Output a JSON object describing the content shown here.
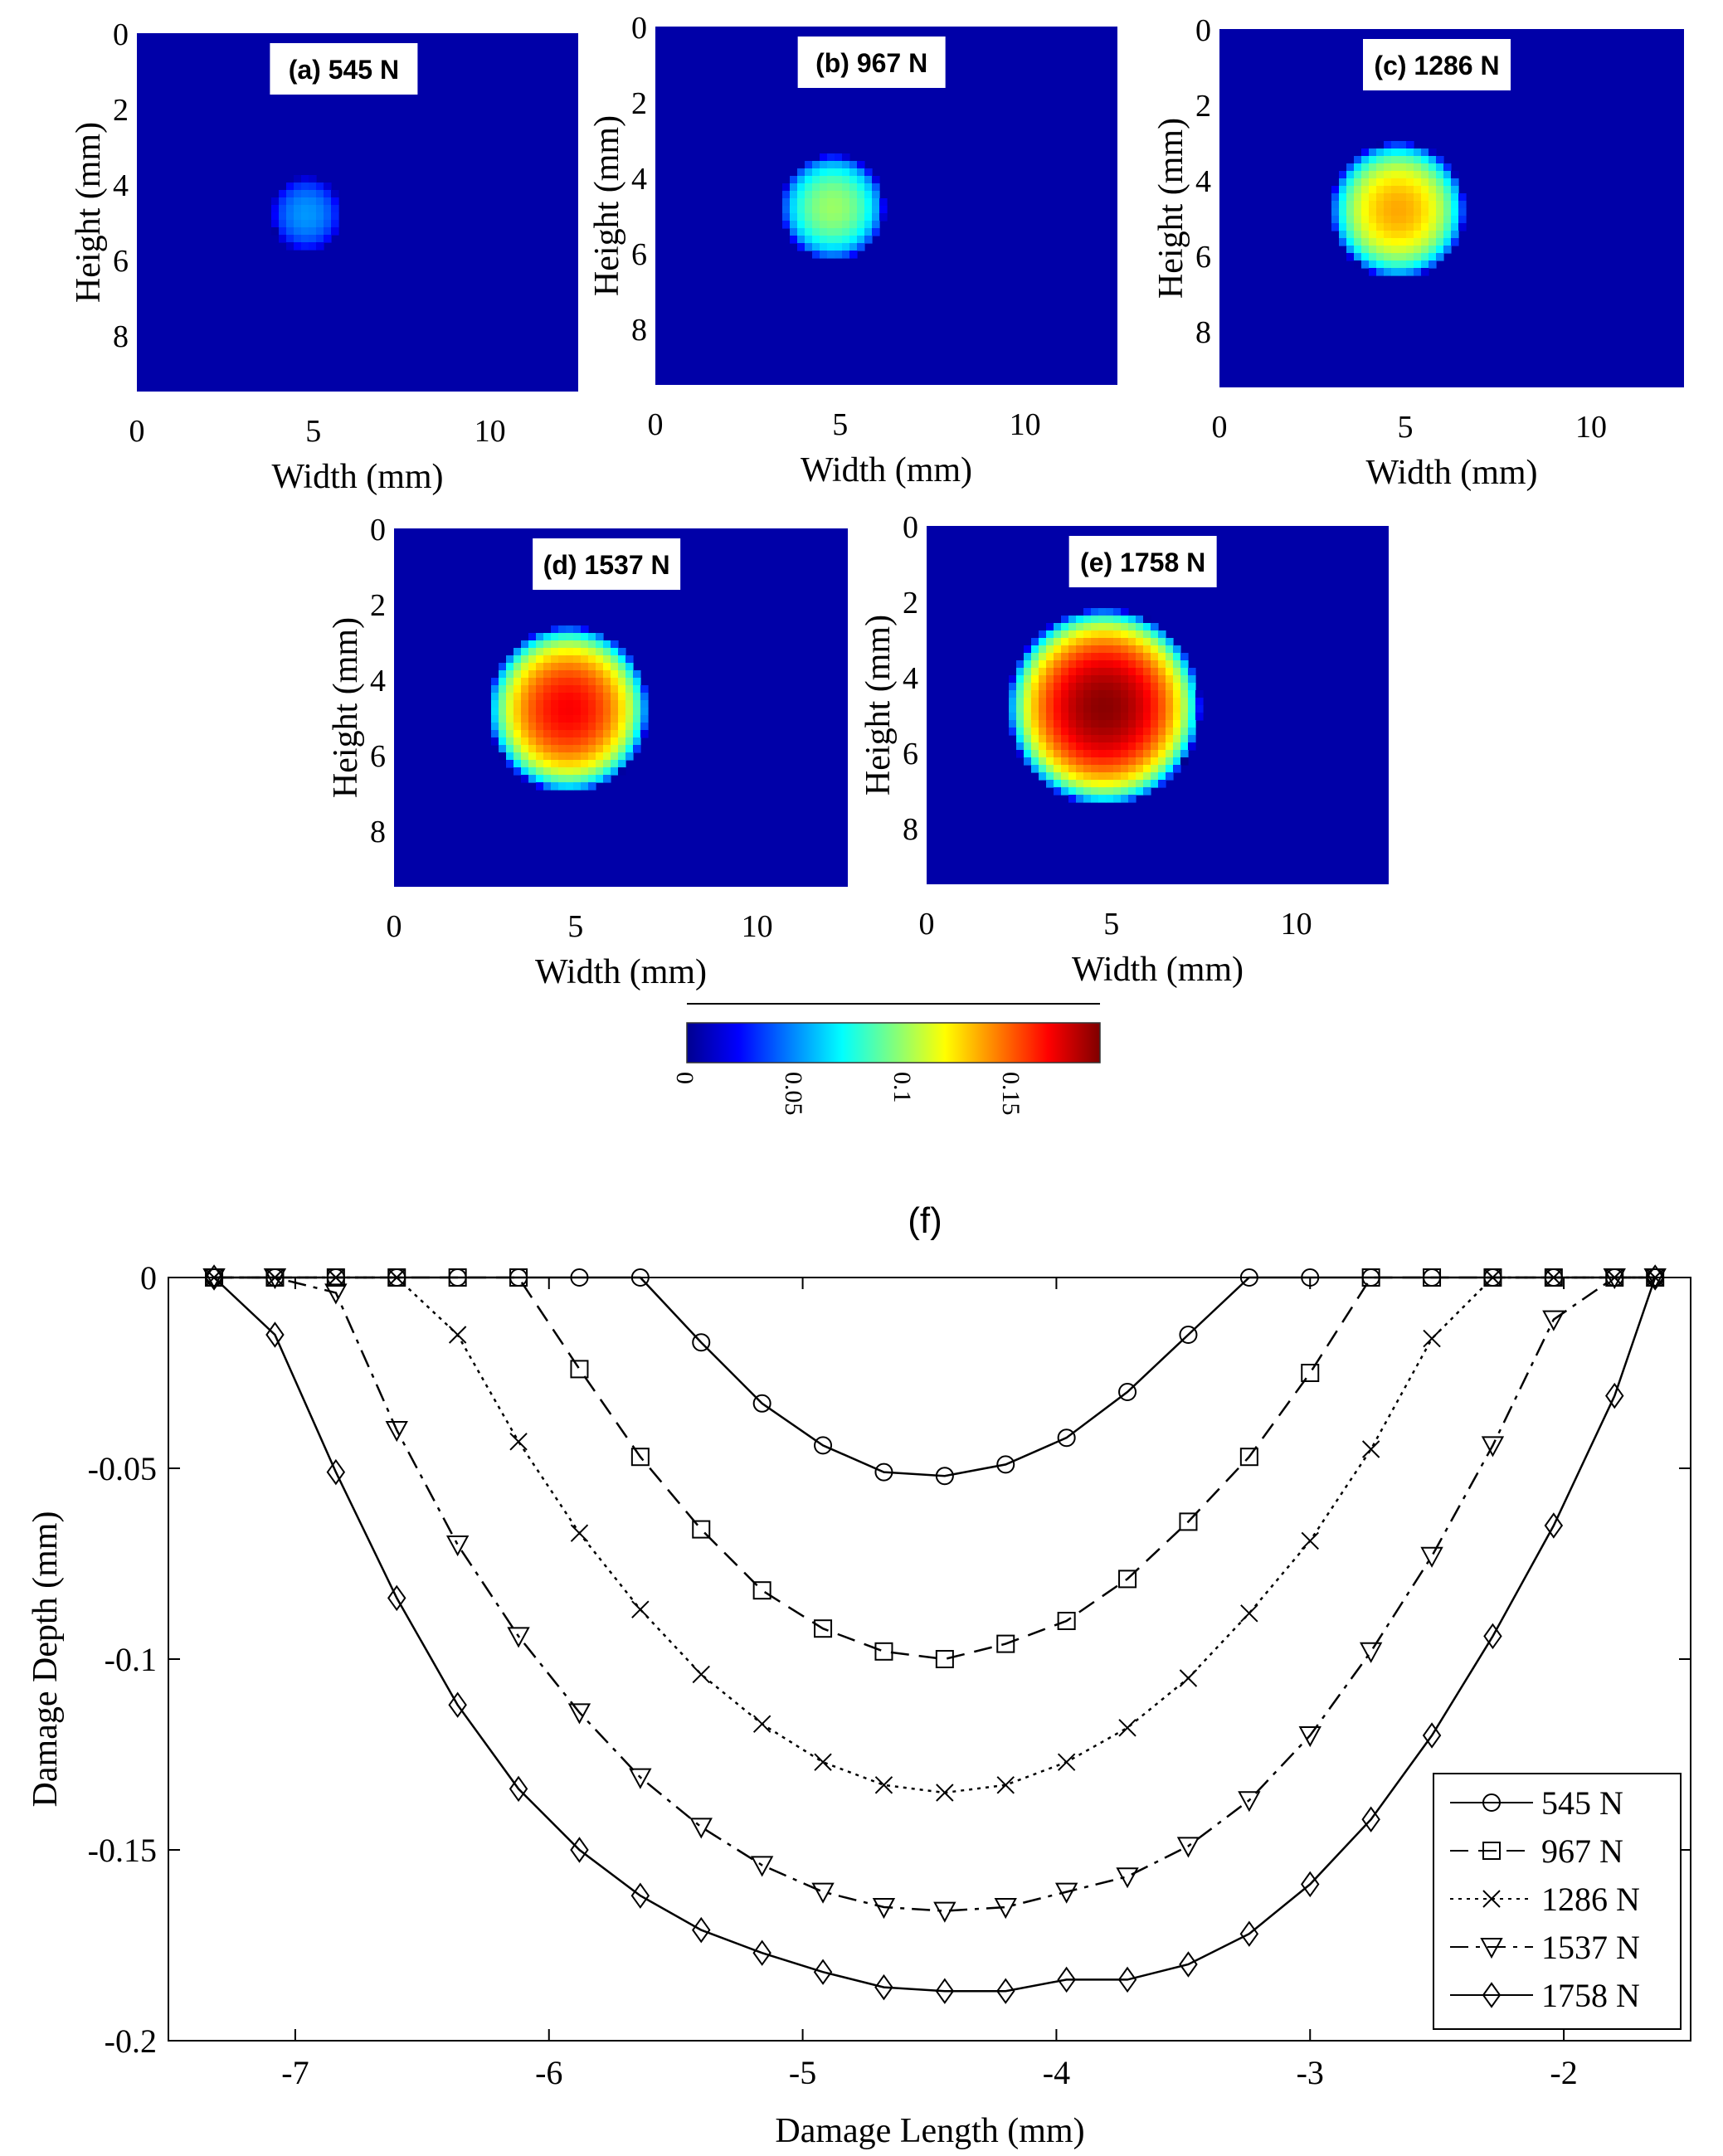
{
  "heatmaps": {
    "xlabel": "Width (mm)",
    "ylabel": "Height (mm)",
    "x_ticks": [
      "0",
      "5",
      "10"
    ],
    "y_ticks": [
      "0",
      "2",
      "4",
      "6",
      "8"
    ],
    "xlim": [
      0,
      12.5
    ],
    "ylim": [
      0,
      9.5
    ],
    "background_color": "#0000a8",
    "panels": [
      {
        "label": "(a) 545 N",
        "center_mm": [
          4.8,
          4.8
        ],
        "radius_mm": 1.0,
        "peak": 0.052
      },
      {
        "label": "(b) 967 N",
        "center_mm": [
          4.8,
          4.8
        ],
        "radius_mm": 1.4,
        "peak": 0.1
      },
      {
        "label": "(c) 1286 N",
        "center_mm": [
          4.8,
          4.8
        ],
        "radius_mm": 1.8,
        "peak": 0.135
      },
      {
        "label": "(d) 1537 N",
        "center_mm": [
          4.8,
          4.8
        ],
        "radius_mm": 2.2,
        "peak": 0.167
      },
      {
        "label": "(e) 1758 N",
        "center_mm": [
          4.8,
          4.8
        ],
        "radius_mm": 2.6,
        "peak": 0.188
      }
    ]
  },
  "colorbar": {
    "ticks": [
      "0",
      "0.05",
      "0.1",
      "0.15"
    ],
    "range": [
      0,
      0.19
    ]
  },
  "chart_data": {
    "type": "line",
    "title": "(f)",
    "xlabel": "Damage Length (mm)",
    "ylabel": "Damage Depth (mm)",
    "xlim": [
      -7.5,
      -1.5
    ],
    "ylim": [
      -0.2,
      0
    ],
    "x_ticks": [
      "-7",
      "-6",
      "-5",
      "-4",
      "-3",
      "-2"
    ],
    "y_ticks": [
      "0",
      "-0.05",
      "-0.1",
      "-0.15",
      "-0.2"
    ],
    "legend_position": "bottom-right",
    "series": [
      {
        "name": "545 N",
        "marker": "circle",
        "dash": "solid",
        "x": [
          -7.32,
          -7.08,
          -6.84,
          -6.6,
          -6.36,
          -6.12,
          -5.88,
          -5.64,
          -5.4,
          -5.16,
          -4.92,
          -4.68,
          -4.44,
          -4.2,
          -3.96,
          -3.72,
          -3.48,
          -3.24,
          -3.0,
          -2.76,
          -2.52,
          -2.28,
          -2.04,
          -1.8,
          -1.64
        ],
        "y": [
          0,
          0,
          0,
          0,
          0,
          0,
          0,
          0,
          -0.017,
          -0.033,
          -0.044,
          -0.051,
          -0.052,
          -0.049,
          -0.042,
          -0.03,
          -0.015,
          0,
          0,
          0,
          0,
          0,
          0,
          0,
          0
        ]
      },
      {
        "name": "967 N",
        "marker": "square",
        "dash": "dashed",
        "x": [
          -7.32,
          -7.08,
          -6.84,
          -6.6,
          -6.36,
          -6.12,
          -5.88,
          -5.64,
          -5.4,
          -5.16,
          -4.92,
          -4.68,
          -4.44,
          -4.2,
          -3.96,
          -3.72,
          -3.48,
          -3.24,
          -3.0,
          -2.76,
          -2.52,
          -2.28,
          -2.04,
          -1.8,
          -1.64
        ],
        "y": [
          0,
          0,
          0,
          0,
          0,
          0,
          -0.024,
          -0.047,
          -0.066,
          -0.082,
          -0.092,
          -0.098,
          -0.1,
          -0.096,
          -0.09,
          -0.079,
          -0.064,
          -0.047,
          -0.025,
          0,
          0,
          0,
          0,
          0,
          0
        ]
      },
      {
        "name": "1286 N",
        "marker": "cross",
        "dash": "dotted",
        "x": [
          -7.32,
          -7.08,
          -6.84,
          -6.6,
          -6.36,
          -6.12,
          -5.88,
          -5.64,
          -5.4,
          -5.16,
          -4.92,
          -4.68,
          -4.44,
          -4.2,
          -3.96,
          -3.72,
          -3.48,
          -3.24,
          -3.0,
          -2.76,
          -2.52,
          -2.28,
          -2.04,
          -1.8,
          -1.64
        ],
        "y": [
          0,
          0,
          0,
          0,
          -0.015,
          -0.043,
          -0.067,
          -0.087,
          -0.104,
          -0.117,
          -0.127,
          -0.133,
          -0.135,
          -0.133,
          -0.127,
          -0.118,
          -0.105,
          -0.088,
          -0.069,
          -0.045,
          -0.016,
          0,
          0,
          0,
          0
        ]
      },
      {
        "name": "1537 N",
        "marker": "triangle-down",
        "dash": "dashdot",
        "x": [
          -7.32,
          -7.08,
          -6.84,
          -6.6,
          -6.36,
          -6.12,
          -5.88,
          -5.64,
          -5.4,
          -5.16,
          -4.92,
          -4.68,
          -4.44,
          -4.2,
          -3.96,
          -3.72,
          -3.48,
          -3.24,
          -3.0,
          -2.76,
          -2.52,
          -2.28,
          -2.04,
          -1.8,
          -1.64
        ],
        "y": [
          0,
          0,
          -0.004,
          -0.04,
          -0.07,
          -0.094,
          -0.114,
          -0.131,
          -0.144,
          -0.154,
          -0.161,
          -0.165,
          -0.166,
          -0.165,
          -0.161,
          -0.157,
          -0.149,
          -0.137,
          -0.12,
          -0.098,
          -0.073,
          -0.044,
          -0.011,
          0,
          0
        ]
      },
      {
        "name": "1758 N",
        "marker": "diamond",
        "dash": "solid",
        "x": [
          -7.32,
          -7.08,
          -6.84,
          -6.6,
          -6.36,
          -6.12,
          -5.88,
          -5.64,
          -5.4,
          -5.16,
          -4.92,
          -4.68,
          -4.44,
          -4.2,
          -3.96,
          -3.72,
          -3.48,
          -3.24,
          -3.0,
          -2.76,
          -2.52,
          -2.28,
          -2.04,
          -1.8,
          -1.64
        ],
        "y": [
          0,
          -0.015,
          -0.051,
          -0.084,
          -0.112,
          -0.134,
          -0.15,
          -0.162,
          -0.171,
          -0.177,
          -0.182,
          -0.186,
          -0.187,
          -0.187,
          -0.184,
          -0.184,
          -0.18,
          -0.172,
          -0.159,
          -0.142,
          -0.12,
          -0.094,
          -0.065,
          -0.031,
          0
        ]
      }
    ]
  }
}
